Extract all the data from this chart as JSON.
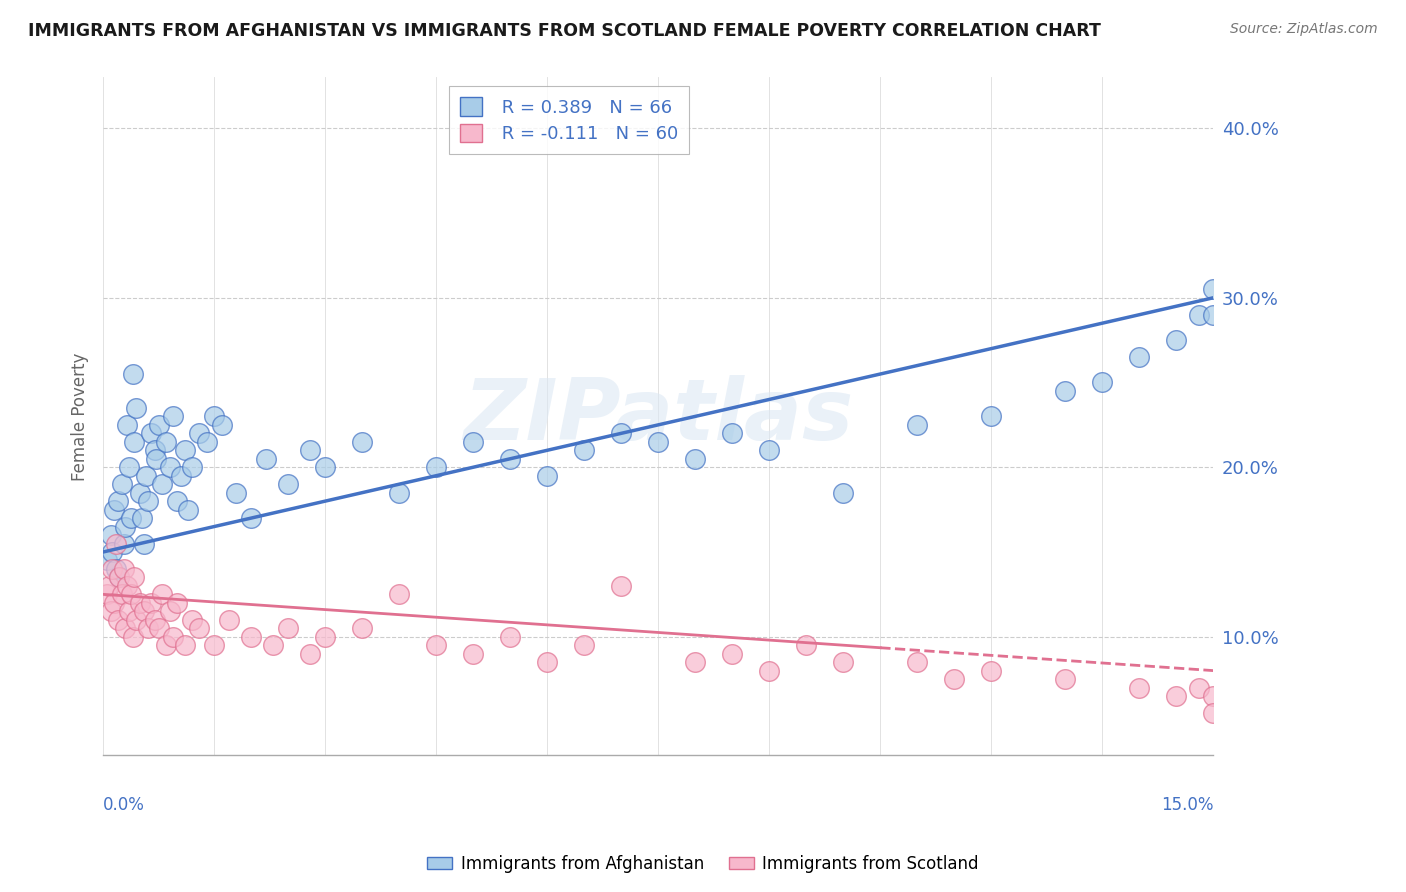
{
  "title": "IMMIGRANTS FROM AFGHANISTAN VS IMMIGRANTS FROM SCOTLAND FEMALE POVERTY CORRELATION CHART",
  "source_text": "Source: ZipAtlas.com",
  "ylabel_ticks": [
    10.0,
    20.0,
    30.0,
    40.0
  ],
  "xmin": 0.0,
  "xmax": 15.0,
  "ymin": 3.0,
  "ymax": 43.0,
  "afghanistan_R": 0.389,
  "afghanistan_N": 66,
  "scotland_R": -0.111,
  "scotland_N": 60,
  "afghanistan_color": "#a8cce8",
  "scotland_color": "#f7b8cc",
  "trend_afghanistan_color": "#4472c4",
  "trend_scotland_color": "#e07090",
  "afghanistan_x": [
    0.05,
    0.1,
    0.12,
    0.15,
    0.18,
    0.2,
    0.22,
    0.25,
    0.28,
    0.3,
    0.32,
    0.35,
    0.38,
    0.4,
    0.42,
    0.45,
    0.5,
    0.52,
    0.55,
    0.58,
    0.6,
    0.65,
    0.7,
    0.72,
    0.75,
    0.8,
    0.85,
    0.9,
    0.95,
    1.0,
    1.05,
    1.1,
    1.15,
    1.2,
    1.3,
    1.4,
    1.5,
    1.6,
    1.8,
    2.0,
    2.2,
    2.5,
    2.8,
    3.0,
    3.5,
    4.0,
    4.5,
    5.0,
    5.5,
    6.0,
    6.5,
    7.0,
    7.5,
    8.0,
    8.5,
    9.0,
    10.0,
    11.0,
    12.0,
    13.0,
    13.5,
    14.0,
    14.5,
    14.8,
    15.0,
    15.0
  ],
  "afghanistan_y": [
    14.5,
    16.0,
    15.0,
    17.5,
    14.0,
    18.0,
    13.5,
    19.0,
    15.5,
    16.5,
    22.5,
    20.0,
    17.0,
    25.5,
    21.5,
    23.5,
    18.5,
    17.0,
    15.5,
    19.5,
    18.0,
    22.0,
    21.0,
    20.5,
    22.5,
    19.0,
    21.5,
    20.0,
    23.0,
    18.0,
    19.5,
    21.0,
    17.5,
    20.0,
    22.0,
    21.5,
    23.0,
    22.5,
    18.5,
    17.0,
    20.5,
    19.0,
    21.0,
    20.0,
    21.5,
    18.5,
    20.0,
    21.5,
    20.5,
    19.5,
    21.0,
    22.0,
    21.5,
    20.5,
    22.0,
    21.0,
    18.5,
    22.5,
    23.0,
    24.5,
    25.0,
    26.5,
    27.5,
    29.0,
    30.5,
    29.0
  ],
  "scotland_x": [
    0.05,
    0.08,
    0.1,
    0.12,
    0.15,
    0.18,
    0.2,
    0.22,
    0.25,
    0.28,
    0.3,
    0.32,
    0.35,
    0.38,
    0.4,
    0.42,
    0.45,
    0.5,
    0.55,
    0.6,
    0.65,
    0.7,
    0.75,
    0.8,
    0.85,
    0.9,
    0.95,
    1.0,
    1.1,
    1.2,
    1.3,
    1.5,
    1.7,
    2.0,
    2.3,
    2.5,
    2.8,
    3.0,
    3.5,
    4.0,
    4.5,
    5.0,
    5.5,
    6.0,
    6.5,
    7.0,
    8.0,
    8.5,
    9.0,
    9.5,
    10.0,
    11.0,
    11.5,
    12.0,
    13.0,
    14.0,
    14.5,
    14.8,
    15.0,
    15.0
  ],
  "scotland_y": [
    12.5,
    13.0,
    11.5,
    14.0,
    12.0,
    15.5,
    11.0,
    13.5,
    12.5,
    14.0,
    10.5,
    13.0,
    11.5,
    12.5,
    10.0,
    13.5,
    11.0,
    12.0,
    11.5,
    10.5,
    12.0,
    11.0,
    10.5,
    12.5,
    9.5,
    11.5,
    10.0,
    12.0,
    9.5,
    11.0,
    10.5,
    9.5,
    11.0,
    10.0,
    9.5,
    10.5,
    9.0,
    10.0,
    10.5,
    12.5,
    9.5,
    9.0,
    10.0,
    8.5,
    9.5,
    13.0,
    8.5,
    9.0,
    8.0,
    9.5,
    8.5,
    8.5,
    7.5,
    8.0,
    7.5,
    7.0,
    6.5,
    7.0,
    6.5,
    5.5
  ]
}
